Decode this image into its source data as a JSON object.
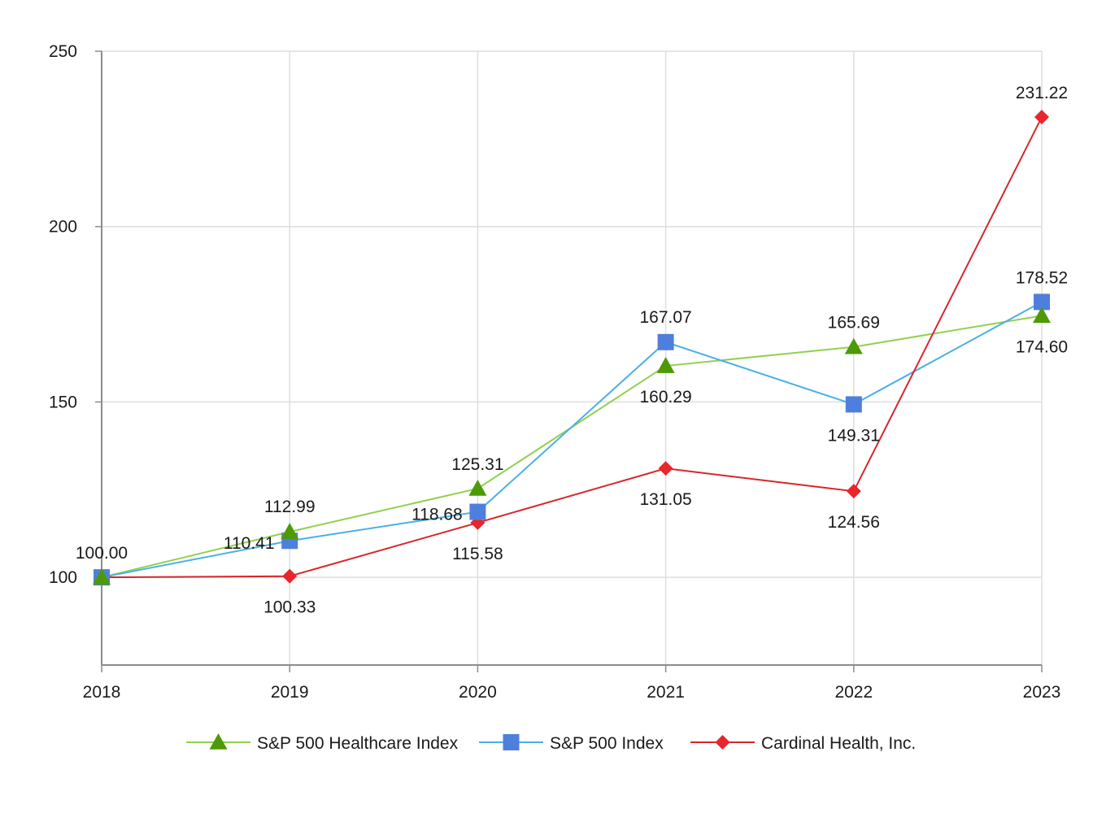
{
  "chart_data": {
    "type": "line",
    "title": "",
    "xlabel": "",
    "ylabel": "",
    "x": [
      "2018",
      "2019",
      "2020",
      "2021",
      "2022",
      "2023"
    ],
    "ylim": [
      75,
      250
    ],
    "yticks": [
      "100",
      "150",
      "200",
      "250"
    ],
    "grid": true,
    "legend_position": "bottom",
    "series": [
      {
        "name": "S&P 500 Healthcare Index",
        "marker": "triangle",
        "line_color": "#92d050",
        "marker_color": "#4e9a06",
        "values": [
          100.0,
          112.99,
          125.31,
          160.29,
          165.69,
          174.6
        ],
        "labels": [
          "100.00",
          "112.99",
          "125.31",
          "160.29",
          "165.69",
          "174.60"
        ]
      },
      {
        "name": "S&P 500 Index",
        "marker": "square",
        "line_color": "#4ab0e4",
        "marker_color": "#4f7fdc",
        "values": [
          100.0,
          110.41,
          118.68,
          167.07,
          149.31,
          178.52
        ],
        "labels": [
          "",
          "110.41",
          "118.68",
          "167.07",
          "149.31",
          "178.52"
        ]
      },
      {
        "name": "Cardinal Health, Inc.",
        "marker": "diamond",
        "line_color": "#d8262b",
        "marker_color": "#e8262b",
        "values": [
          100.0,
          100.33,
          115.58,
          131.05,
          124.56,
          231.22
        ],
        "labels": [
          "",
          "100.33",
          "115.58",
          "131.05",
          "124.56",
          "231.22"
        ]
      }
    ]
  }
}
